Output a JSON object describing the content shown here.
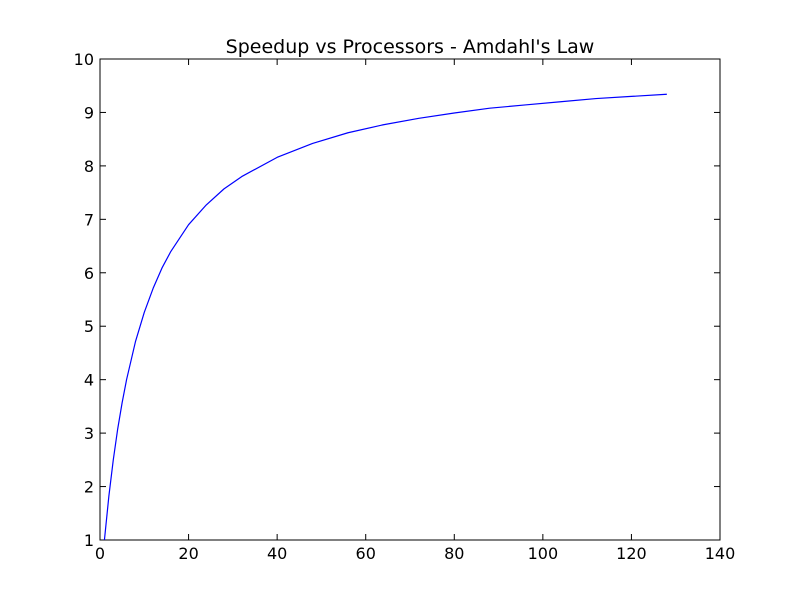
{
  "chart_data": {
    "type": "line",
    "title": "Speedup vs Processors - Amdahl's Law",
    "xlabel": "",
    "ylabel": "",
    "xlim": [
      0,
      140
    ],
    "ylim": [
      1,
      10
    ],
    "x_ticks": [
      0,
      20,
      40,
      60,
      80,
      100,
      120,
      140
    ],
    "y_ticks": [
      1,
      2,
      3,
      4,
      5,
      6,
      7,
      8,
      9,
      10
    ],
    "grid": false,
    "legend": "none",
    "series": [
      {
        "color": "#0000ff",
        "x": [
          1,
          2,
          3,
          4,
          5,
          6,
          8,
          10,
          12,
          14,
          16,
          20,
          24,
          28,
          32,
          40,
          48,
          56,
          64,
          72,
          80,
          88,
          96,
          104,
          112,
          120,
          128
        ],
        "y": [
          1.0,
          1.82,
          2.5,
          3.08,
          3.57,
          4.0,
          4.71,
          5.26,
          5.71,
          6.09,
          6.4,
          6.9,
          7.27,
          7.57,
          7.8,
          8.16,
          8.42,
          8.62,
          8.77,
          8.89,
          8.99,
          9.08,
          9.14,
          9.2,
          9.26,
          9.3,
          9.34
        ]
      }
    ]
  }
}
